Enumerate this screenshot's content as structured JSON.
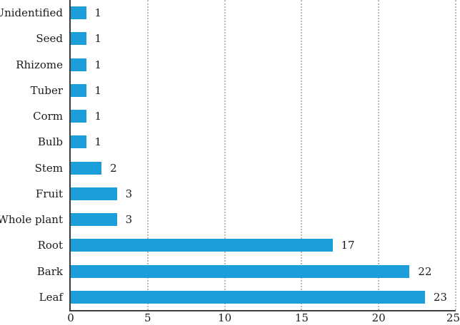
{
  "chart_data": {
    "type": "bar",
    "orientation": "horizontal",
    "title": "",
    "xlabel": "",
    "ylabel": "",
    "order": "top-to-bottom",
    "categories": [
      "Unidentified",
      "Seed",
      "Rhizome",
      "Tuber",
      "Corm",
      "Bulb",
      "Stem",
      "Fruit",
      "Whole plant",
      "Root",
      "Bark",
      "Leaf"
    ],
    "values": [
      1,
      1,
      1,
      1,
      1,
      1,
      2,
      3,
      3,
      17,
      22,
      23
    ],
    "data_labels_shown": true,
    "xlim": [
      0,
      25
    ],
    "xticks": [
      0,
      5,
      10,
      15,
      20,
      25
    ],
    "grid": "vertical-dotted",
    "legend": "none",
    "colors": {
      "bar": "#1B9ED9",
      "axis": "#3d3d3d",
      "gridline": "#bcbcbc",
      "text": "#1a1a1a"
    }
  }
}
